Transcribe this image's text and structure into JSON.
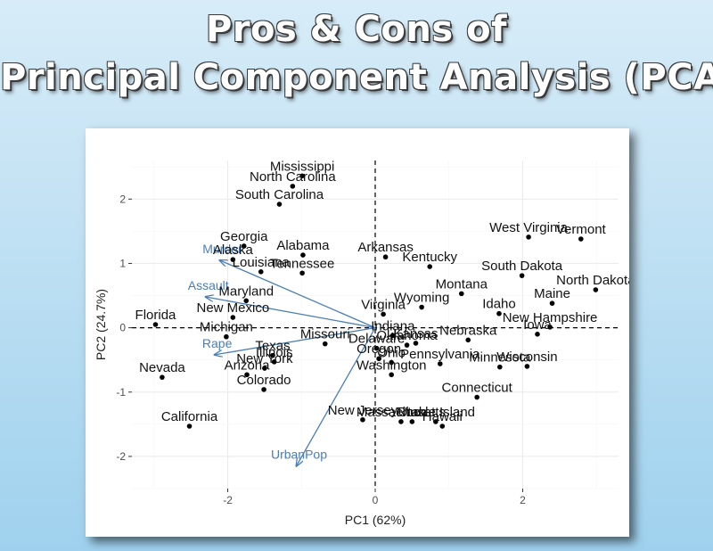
{
  "title_line1": "Pros & Cons of",
  "title_line2": "Principal Component Analysis (PCA)",
  "chart_data": {
    "type": "scatter",
    "subtype": "biplot",
    "xlabel": "PC1 (62%)",
    "ylabel": "PC2 (24.7%)",
    "xlim": [
      -3.3,
      3.3
    ],
    "ylim": [
      -2.5,
      2.6
    ],
    "x_ticks": [
      -2,
      0,
      2
    ],
    "y_ticks": [
      -2,
      -1,
      0,
      1,
      2
    ],
    "grid": true,
    "reference_lines": "dashed lines at x=0 and y=0",
    "colors": {
      "points": "#000000",
      "arrows": "#4a7fb5"
    },
    "points": [
      {
        "label": "Mississippi",
        "x": -0.99,
        "y": 2.36
      },
      {
        "label": "North Carolina",
        "x": -1.12,
        "y": 2.2
      },
      {
        "label": "South Carolina",
        "x": -1.3,
        "y": 1.92
      },
      {
        "label": "Georgia",
        "x": -1.78,
        "y": 1.27
      },
      {
        "label": "Alaska",
        "x": -1.93,
        "y": 1.06
      },
      {
        "label": "Louisiana",
        "x": -1.55,
        "y": 0.87
      },
      {
        "label": "Tennessee",
        "x": -0.99,
        "y": 0.85
      },
      {
        "label": "Alabama",
        "x": -0.98,
        "y": 1.13
      },
      {
        "label": "Arkansas",
        "x": 0.14,
        "y": 1.1
      },
      {
        "label": "Kentucky",
        "x": 0.74,
        "y": 0.95
      },
      {
        "label": "West Virginia",
        "x": 2.08,
        "y": 1.41
      },
      {
        "label": "Vermont",
        "x": 2.79,
        "y": 1.38
      },
      {
        "label": "South Dakota",
        "x": 1.99,
        "y": 0.81
      },
      {
        "label": "North Dakota",
        "x": 2.99,
        "y": 0.59
      },
      {
        "label": "Montana",
        "x": 1.17,
        "y": 0.53
      },
      {
        "label": "Maine",
        "x": 2.4,
        "y": 0.38
      },
      {
        "label": "Idaho",
        "x": 1.68,
        "y": 0.22
      },
      {
        "label": "Maryland",
        "x": -1.75,
        "y": 0.42
      },
      {
        "label": "New Mexico",
        "x": -1.93,
        "y": 0.16
      },
      {
        "label": "Florida",
        "x": -2.98,
        "y": 0.05
      },
      {
        "label": "Michigan",
        "x": -2.02,
        "y": -0.14
      },
      {
        "label": "Wyoming",
        "x": 0.63,
        "y": 0.32
      },
      {
        "label": "Virginia",
        "x": 0.11,
        "y": 0.21
      },
      {
        "label": "New Hampshire",
        "x": 2.37,
        "y": 0.01
      },
      {
        "label": "Iowa",
        "x": 2.2,
        "y": -0.1
      },
      {
        "label": "Indiana",
        "x": 0.24,
        "y": -0.12
      },
      {
        "label": "Missouri",
        "x": -0.68,
        "y": -0.25
      },
      {
        "label": "Delaware",
        "x": 0.02,
        "y": -0.32
      },
      {
        "label": "Kansas",
        "x": 0.55,
        "y": -0.24
      },
      {
        "label": "Oklahoma",
        "x": 0.43,
        "y": -0.27
      },
      {
        "label": "Nebraska",
        "x": 1.26,
        "y": -0.19
      },
      {
        "label": "Texas",
        "x": -1.39,
        "y": -0.43
      },
      {
        "label": "Oregon",
        "x": 0.05,
        "y": -0.48
      },
      {
        "label": "Ohio",
        "x": 0.22,
        "y": -0.54
      },
      {
        "label": "Pennsylvania",
        "x": 0.88,
        "y": -0.56
      },
      {
        "label": "Minnesota",
        "x": 1.69,
        "y": -0.61
      },
      {
        "label": "Wisconsin",
        "x": 2.06,
        "y": -0.6
      },
      {
        "label": "Illinois",
        "x": -1.37,
        "y": -0.53
      },
      {
        "label": "Arizona",
        "x": -1.74,
        "y": -0.73
      },
      {
        "label": "New York",
        "x": -1.5,
        "y": -0.63
      },
      {
        "label": "Colorado",
        "x": -1.51,
        "y": -0.96
      },
      {
        "label": "Nevada",
        "x": -2.89,
        "y": -0.77
      },
      {
        "label": "Washington",
        "x": 0.22,
        "y": -0.73
      },
      {
        "label": "Connecticut",
        "x": 1.38,
        "y": -1.08
      },
      {
        "label": "California",
        "x": -2.52,
        "y": -1.53
      },
      {
        "label": "New Jersey",
        "x": -0.17,
        "y": -1.43
      },
      {
        "label": "Massachusetts",
        "x": 0.35,
        "y": -1.46
      },
      {
        "label": "Utah",
        "x": 0.5,
        "y": -1.46
      },
      {
        "label": "Rhode Island",
        "x": 0.82,
        "y": -1.46
      },
      {
        "label": "Hawaii",
        "x": 0.91,
        "y": -1.53
      }
    ],
    "vectors": [
      {
        "label": "Murder",
        "x": -2.11,
        "y": 1.05
      },
      {
        "label": "Assault",
        "x": -2.3,
        "y": 0.48
      },
      {
        "label": "Rape",
        "x": -2.18,
        "y": -0.42
      },
      {
        "label": "UrbanPop",
        "x": -1.07,
        "y": -2.15
      }
    ]
  }
}
